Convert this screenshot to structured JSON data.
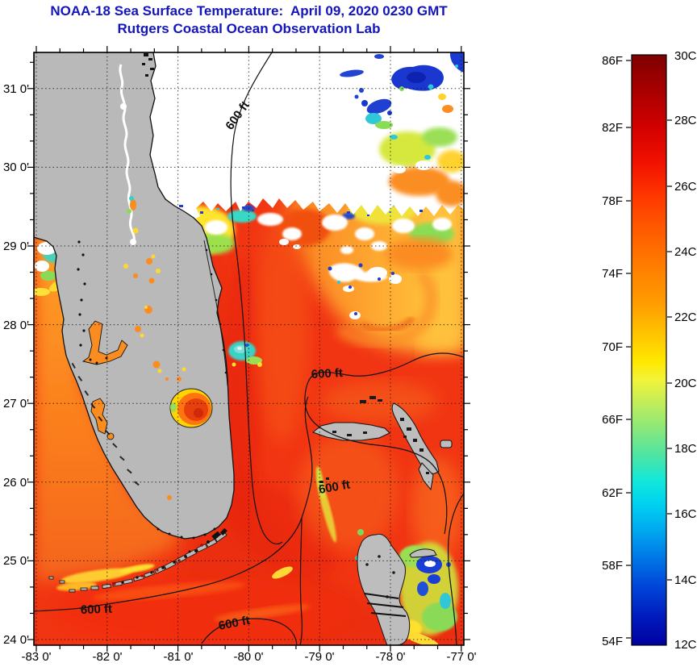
{
  "title": "NOAA-18 Sea Surface Temperature:  April 09, 2020 0230 GMT",
  "subtitle": "Rutgers Coastal Ocean Observation Lab",
  "title_color": "#1414bc",
  "map": {
    "contour_label_text": "600 ft",
    "x_ticks": [
      {
        "label": "-83 0'"
      },
      {
        "label": "-82 0'"
      },
      {
        "label": "-81 0'"
      },
      {
        "label": "-80 0'"
      },
      {
        "label": "-79 0'"
      },
      {
        "label": "-78 0'"
      },
      {
        "label": "-77 0'"
      }
    ],
    "y_ticks": [
      {
        "label": "31 0'"
      },
      {
        "label": "30 0'"
      },
      {
        "label": "29 0'"
      },
      {
        "label": "28 0'"
      },
      {
        "label": "27 0'"
      },
      {
        "label": "26 0'"
      },
      {
        "label": "25 0'"
      },
      {
        "label": "24 0'"
      }
    ]
  },
  "colorbar": {
    "fahrenheit_labels": [
      {
        "text": "86F"
      },
      {
        "text": "82F"
      },
      {
        "text": "78F"
      },
      {
        "text": "74F"
      },
      {
        "text": "70F"
      },
      {
        "text": "66F"
      },
      {
        "text": "62F"
      },
      {
        "text": "58F"
      },
      {
        "text": "54F"
      }
    ],
    "celsius_labels": [
      {
        "text": "30C"
      },
      {
        "text": "28C"
      },
      {
        "text": "26C"
      },
      {
        "text": "24C"
      },
      {
        "text": "22C"
      },
      {
        "text": "20C"
      },
      {
        "text": "18C"
      },
      {
        "text": "16C"
      },
      {
        "text": "14C"
      },
      {
        "text": "12C"
      }
    ]
  },
  "colors": {
    "land_gray": "#b9b9b9",
    "cloud_white": "#ffffff",
    "ocean_red": "#f13513",
    "gulf_orange": "#fb8c20"
  },
  "chart_data": {
    "type": "heatmap",
    "title": "NOAA-18 Sea Surface Temperature:  April 09, 2020 0230 GMT",
    "subtitle": "Rutgers Coastal Ocean Observation Lab",
    "x_axis": {
      "tick_labels": [
        "-83 0'",
        "-82 0'",
        "-81 0'",
        "-80 0'",
        "-79 0'",
        "-78 0'",
        "-77 0'"
      ],
      "units": "degrees longitude",
      "range": [
        -83.05,
        -76.95
      ],
      "minor_tick_minutes": 20
    },
    "y_axis": {
      "tick_labels": [
        "31 0'",
        "30 0'",
        "29 0'",
        "28 0'",
        "27 0'",
        "26 0'",
        "25 0'",
        "24 0'"
      ],
      "units": "degrees latitude",
      "range": [
        23.93,
        31.46
      ],
      "minor_tick_minutes": 20
    },
    "grid": "dotted at whole degrees",
    "colorbar": {
      "colormap": "jet",
      "range_celsius": [
        12,
        30
      ],
      "fahrenheit_ticks": [
        86,
        82,
        78,
        74,
        70,
        66,
        62,
        58,
        54
      ],
      "celsius_ticks": [
        30,
        28,
        26,
        24,
        22,
        20,
        18,
        16,
        14,
        12
      ]
    },
    "contours": {
      "label": "600 ft",
      "label_count": 5,
      "meaning": "600 ft depth isobath"
    },
    "features": [
      "Florida peninsula masked gray with Lake Okeechobee SST visible (~26-28C)",
      "White cloud mask over northeast quadrant with cold blue/cyan artifacts (12-18C)",
      "Gulf Stream warm red core ~26-27C along Florida east coast and Straits of Florida",
      "Gulf of Mexico shelf orange ~23-24C with yellow coastal streaks",
      "Northeast Atlantic waters orange-yellow ~23-25C with eddy swirls",
      "Grand Bahama, Abaco, Berry Islands, Andros and Florida Keys masked gray",
      "Cold upwelling patch near Vero Beach coast (~19-20C)"
    ]
  }
}
